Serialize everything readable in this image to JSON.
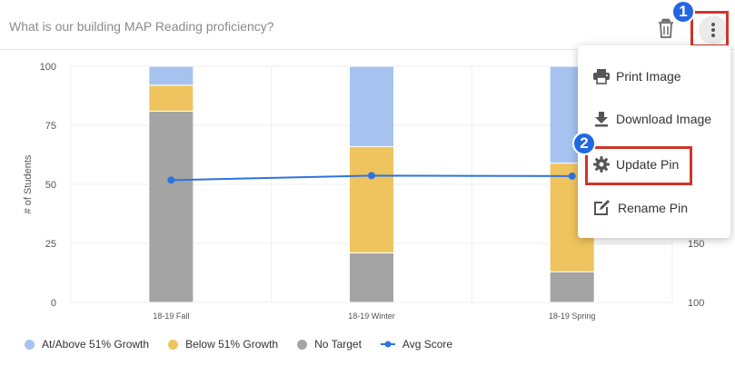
{
  "header": {
    "title": "What is our building MAP Reading proficiency?"
  },
  "menu": {
    "items": [
      {
        "label": "Print Image",
        "icon": "printer-icon"
      },
      {
        "label": "Download Image",
        "icon": "download-icon"
      },
      {
        "label": "Update Pin",
        "icon": "gear-icon"
      },
      {
        "label": "Rename Pin",
        "icon": "edit-icon"
      }
    ]
  },
  "badges": {
    "first": "1",
    "second": "2"
  },
  "colors": {
    "at_above": "#a5c3ee",
    "below": "#efc45e",
    "no_target": "#a4a4a4",
    "avg": "#2d74de",
    "highlight": "#d0342c",
    "badge": "#2266e2"
  },
  "chart_data": {
    "type": "bar",
    "stacked": true,
    "categories": [
      "18-19 Fall",
      "18-19 Winter",
      "18-19 Spring"
    ],
    "series": [
      {
        "name": "No Target",
        "values": [
          81,
          21,
          13
        ]
      },
      {
        "name": "Below 51% Growth",
        "values": [
          11,
          45,
          46
        ]
      },
      {
        "name": "At/Above 51% Growth",
        "values": [
          8,
          34,
          41
        ]
      }
    ],
    "line_series": {
      "name": "Avg Score",
      "values": [
        51.8,
        53.7,
        53.5
      ]
    },
    "ylabel": "# of Students",
    "ylim": [
      0,
      100
    ],
    "yticks": [
      "0",
      "25",
      "50",
      "75",
      "100"
    ],
    "y2_ticks_visible": [
      "100",
      "150"
    ],
    "legend_position": "bottom-left"
  }
}
